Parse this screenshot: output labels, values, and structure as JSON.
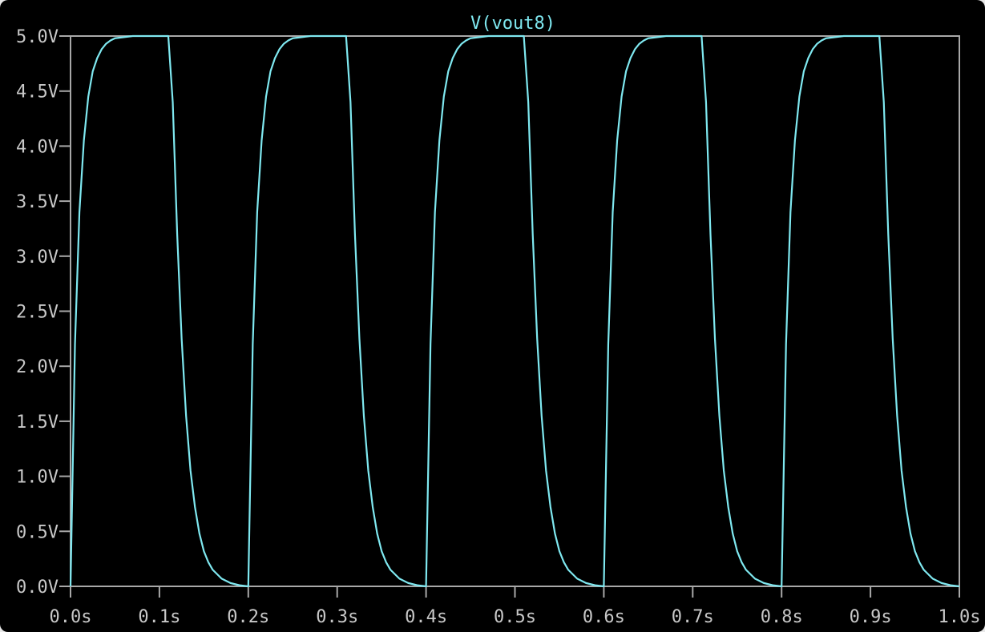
{
  "window": {
    "background": "#000000",
    "frame_color": "#e8e8e8"
  },
  "chart_data": {
    "type": "line",
    "title": "V(vout8)",
    "xlabel": "",
    "ylabel": "",
    "xlim": [
      0.0,
      1.0
    ],
    "ylim": [
      0.0,
      5.0
    ],
    "x_ticks": [
      "0.0s",
      "0.1s",
      "0.2s",
      "0.3s",
      "0.4s",
      "0.5s",
      "0.6s",
      "0.7s",
      "0.8s",
      "0.9s",
      "1.0s"
    ],
    "x_tick_values": [
      0.0,
      0.1,
      0.2,
      0.3,
      0.4,
      0.5,
      0.6,
      0.7,
      0.8,
      0.9,
      1.0
    ],
    "y_ticks": [
      "0.0V",
      "0.5V",
      "1.0V",
      "1.5V",
      "2.0V",
      "2.5V",
      "3.0V",
      "3.5V",
      "4.0V",
      "4.5V",
      "5.0V"
    ],
    "y_tick_values": [
      0.0,
      0.5,
      1.0,
      1.5,
      2.0,
      2.5,
      3.0,
      3.5,
      4.0,
      4.5,
      5.0
    ],
    "grid": false,
    "legend": "none",
    "colors": {
      "trace": "#7fe8f0",
      "axis": "#a8a8a8",
      "tick_label": "#c8c8c8",
      "title": "#7fe8f0"
    },
    "series": [
      {
        "name": "V(vout8)",
        "x": [
          0.0,
          0.005,
          0.01,
          0.015,
          0.02,
          0.025,
          0.03,
          0.035,
          0.04,
          0.045,
          0.05,
          0.06,
          0.07,
          0.08,
          0.09,
          0.1,
          0.11,
          0.115,
          0.12,
          0.125,
          0.13,
          0.135,
          0.14,
          0.145,
          0.15,
          0.155,
          0.16,
          0.17,
          0.18,
          0.19,
          0.2,
          0.205,
          0.21,
          0.215,
          0.22,
          0.225,
          0.23,
          0.235,
          0.24,
          0.245,
          0.25,
          0.26,
          0.27,
          0.28,
          0.29,
          0.3,
          0.31,
          0.315,
          0.32,
          0.325,
          0.33,
          0.335,
          0.34,
          0.345,
          0.35,
          0.355,
          0.36,
          0.37,
          0.38,
          0.39,
          0.4,
          0.405,
          0.41,
          0.415,
          0.42,
          0.425,
          0.43,
          0.435,
          0.44,
          0.445,
          0.45,
          0.46,
          0.47,
          0.48,
          0.49,
          0.5,
          0.51,
          0.515,
          0.52,
          0.525,
          0.53,
          0.535,
          0.54,
          0.545,
          0.55,
          0.555,
          0.56,
          0.57,
          0.58,
          0.59,
          0.6,
          0.605,
          0.61,
          0.615,
          0.62,
          0.625,
          0.63,
          0.635,
          0.64,
          0.645,
          0.65,
          0.66,
          0.67,
          0.68,
          0.69,
          0.7,
          0.71,
          0.715,
          0.72,
          0.725,
          0.73,
          0.735,
          0.74,
          0.745,
          0.75,
          0.755,
          0.76,
          0.77,
          0.78,
          0.79,
          0.8,
          0.805,
          0.81,
          0.815,
          0.82,
          0.825,
          0.83,
          0.835,
          0.84,
          0.845,
          0.85,
          0.86,
          0.87,
          0.88,
          0.89,
          0.9,
          0.91,
          0.915,
          0.92,
          0.925,
          0.93,
          0.935,
          0.94,
          0.945,
          0.95,
          0.955,
          0.96,
          0.97,
          0.98,
          0.99,
          1.0
        ],
        "y": [
          0.0,
          2.2,
          3.4,
          4.05,
          4.45,
          4.68,
          4.8,
          4.88,
          4.93,
          4.96,
          4.98,
          4.99,
          5.0,
          5.0,
          5.0,
          5.0,
          5.0,
          4.4,
          3.2,
          2.25,
          1.55,
          1.05,
          0.72,
          0.48,
          0.32,
          0.22,
          0.15,
          0.07,
          0.03,
          0.01,
          0.0,
          2.2,
          3.4,
          4.05,
          4.45,
          4.68,
          4.8,
          4.88,
          4.93,
          4.96,
          4.98,
          4.99,
          5.0,
          5.0,
          5.0,
          5.0,
          5.0,
          4.4,
          3.2,
          2.25,
          1.55,
          1.05,
          0.72,
          0.48,
          0.32,
          0.22,
          0.15,
          0.07,
          0.03,
          0.01,
          0.0,
          2.2,
          3.4,
          4.05,
          4.45,
          4.68,
          4.8,
          4.88,
          4.93,
          4.96,
          4.98,
          4.99,
          5.0,
          5.0,
          5.0,
          5.0,
          5.0,
          4.4,
          3.2,
          2.25,
          1.55,
          1.05,
          0.72,
          0.48,
          0.32,
          0.22,
          0.15,
          0.07,
          0.03,
          0.01,
          0.0,
          2.2,
          3.4,
          4.05,
          4.45,
          4.68,
          4.8,
          4.88,
          4.93,
          4.96,
          4.98,
          4.99,
          5.0,
          5.0,
          5.0,
          5.0,
          5.0,
          4.4,
          3.2,
          2.25,
          1.55,
          1.05,
          0.72,
          0.48,
          0.32,
          0.22,
          0.15,
          0.07,
          0.03,
          0.01,
          0.0,
          2.2,
          3.4,
          4.05,
          4.45,
          4.68,
          4.8,
          4.88,
          4.93,
          4.96,
          4.98,
          4.99,
          5.0,
          5.0,
          5.0,
          5.0,
          5.0,
          4.4,
          3.2,
          2.25,
          1.55,
          1.05,
          0.72,
          0.48,
          0.32,
          0.22,
          0.15,
          0.07,
          0.03,
          0.01,
          0.0
        ]
      }
    ]
  }
}
